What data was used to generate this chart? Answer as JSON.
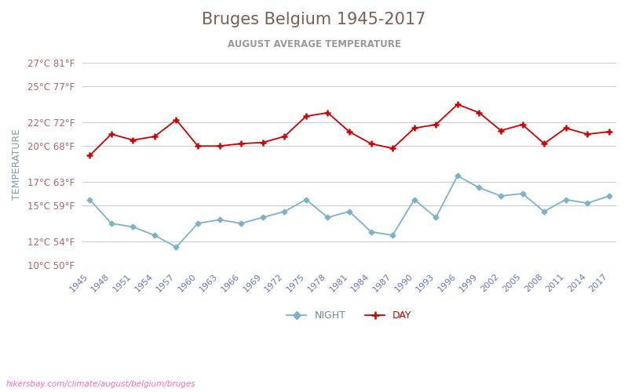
{
  "title": "Bruges Belgium 1945-2017",
  "subtitle": "AUGUST AVERAGE TEMPERATURE",
  "ylabel": "TEMPERATURE",
  "watermark": "hikersbay.com/climate/august/belgium/bruges",
  "years": [
    1945,
    1948,
    1951,
    1954,
    1957,
    1960,
    1963,
    1966,
    1969,
    1972,
    1975,
    1978,
    1981,
    1984,
    1987,
    1990,
    1993,
    1996,
    1999,
    2002,
    2005,
    2008,
    2011,
    2014,
    2017
  ],
  "day_temps": [
    19.2,
    21.0,
    20.5,
    20.8,
    22.2,
    20.0,
    20.0,
    20.2,
    20.3,
    20.8,
    22.5,
    22.8,
    21.2,
    20.2,
    19.8,
    21.5,
    21.8,
    23.5,
    22.8,
    21.3,
    21.8,
    20.2,
    21.5,
    21.0,
    21.2
  ],
  "night_temps": [
    15.5,
    13.5,
    13.2,
    12.5,
    11.5,
    13.5,
    13.8,
    13.5,
    14.0,
    14.5,
    15.5,
    14.0,
    14.5,
    12.8,
    12.5,
    15.5,
    14.0,
    17.5,
    16.5,
    15.8,
    16.0,
    14.5,
    15.5,
    15.2,
    15.8
  ],
  "day_color": "#cc0000",
  "night_color": "#7ab3c8",
  "grid_color": "#cccccc",
  "title_color": "#7a6050",
  "subtitle_color": "#999999",
  "axis_label_color": "#8899aa",
  "tick_color": "#aa6666",
  "watermark_color": "#ff69b4",
  "ylim_min": 10,
  "ylim_max": 27,
  "yticks_c": [
    10,
    12,
    15,
    17,
    20,
    22,
    25,
    27
  ],
  "yticks_f": [
    50,
    54,
    59,
    63,
    68,
    72,
    77,
    81
  ]
}
